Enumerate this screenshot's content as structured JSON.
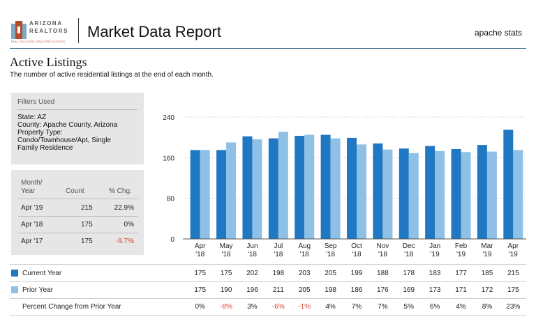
{
  "header": {
    "logo_line1": "ARIZONA",
    "logo_line2": "REALTORS",
    "logo_tagline": "REAL SOLUTIONS. REALTOR® SUCCESS.",
    "title": "Market Data Report",
    "right_label": "apache stats"
  },
  "section": {
    "title": "Active Listings",
    "subtitle": "The number of active residential listings at the end of each month."
  },
  "filters": {
    "title": "Filters Used",
    "lines": [
      "State: AZ",
      "County: Apache County, Arizona",
      "Property Type:",
      "Condo/Townhouse/Apt, Single",
      "Family Residence"
    ]
  },
  "month_table": {
    "headers": [
      "Month/\nYear",
      "Count",
      "% Chg."
    ],
    "rows": [
      {
        "month": "Apr '19",
        "count": "215",
        "chg": "22.9%",
        "negative": false
      },
      {
        "month": "Apr '18",
        "count": "175",
        "chg": "0%",
        "negative": false
      },
      {
        "month": "Apr '17",
        "count": "175",
        "chg": "-9.7%",
        "negative": true
      }
    ]
  },
  "colors": {
    "current": "#1f78c1",
    "prior": "#8fc0e6",
    "negative": "#d9432f"
  },
  "chart_data": {
    "type": "bar",
    "categories": [
      "Apr\n'18",
      "May\n'18",
      "Jun\n'18",
      "Jul\n'18",
      "Aug\n'18",
      "Sep\n'18",
      "Oct\n'18",
      "Nov\n'18",
      "Dec\n'18",
      "Jan\n'19",
      "Feb\n'19",
      "Mar\n'19",
      "Apr\n'19"
    ],
    "series": [
      {
        "name": "Current Year",
        "values": [
          175,
          175,
          202,
          198,
          203,
          205,
          199,
          188,
          178,
          183,
          177,
          185,
          215
        ]
      },
      {
        "name": "Prior Year",
        "values": [
          175,
          190,
          196,
          211,
          205,
          198,
          186,
          176,
          169,
          173,
          171,
          172,
          175
        ]
      }
    ],
    "ylim": [
      0,
      240
    ],
    "yticks": [
      0,
      80,
      160,
      240
    ],
    "grid": true
  },
  "table_rows": {
    "current_label": "Current Year",
    "prior_label": "Prior Year",
    "pct_label": "Percent Change from Prior Year",
    "current_values": [
      "175",
      "175",
      "202",
      "198",
      "203",
      "205",
      "199",
      "188",
      "178",
      "183",
      "177",
      "185",
      "215"
    ],
    "prior_values": [
      "175",
      "190",
      "196",
      "211",
      "205",
      "198",
      "186",
      "176",
      "169",
      "173",
      "171",
      "172",
      "175"
    ],
    "pct_values": [
      "0%",
      "-8%",
      "3%",
      "-6%",
      "-1%",
      "4%",
      "7%",
      "7%",
      "5%",
      "6%",
      "4%",
      "8%",
      "23%"
    ]
  }
}
